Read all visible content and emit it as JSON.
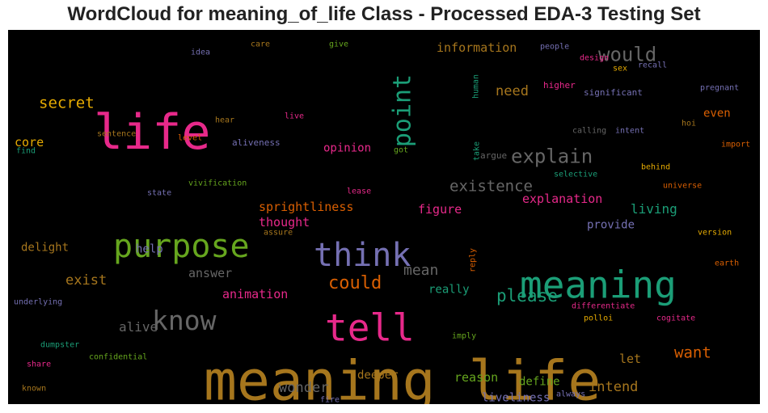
{
  "title": "WordCloud for meaning_of_life Class - Processed EDA-3 Testing Set",
  "chart_data": {
    "type": "wordcloud",
    "title": "WordCloud for meaning_of_life Class - Processed EDA-3 Testing Set",
    "background": "#000000",
    "palette": [
      "#e7298a",
      "#1b9e77",
      "#a6761d",
      "#7570b3",
      "#66a61e",
      "#d95f02",
      "#666666",
      "#e6ab02"
    ],
    "words": [
      {
        "text": "meaning life",
        "weight": 68,
        "color": "#a6761d"
      },
      {
        "text": "life",
        "weight": 60,
        "color": "#e7298a"
      },
      {
        "text": "purpose",
        "weight": 40,
        "color": "#66a61e"
      },
      {
        "text": "think",
        "weight": 40,
        "color": "#7570b3"
      },
      {
        "text": "tell",
        "weight": 46,
        "color": "#e7298a"
      },
      {
        "text": "meaning",
        "weight": 46,
        "color": "#1b9e77"
      },
      {
        "text": "know",
        "weight": 33,
        "color": "#666666"
      },
      {
        "text": "point",
        "weight": 30,
        "color": "#1b9e77"
      },
      {
        "text": "would",
        "weight": 24,
        "color": "#666666"
      },
      {
        "text": "explain",
        "weight": 24,
        "color": "#666666"
      },
      {
        "text": "could",
        "weight": 22,
        "color": "#d95f02"
      },
      {
        "text": "please",
        "weight": 21,
        "color": "#1b9e77"
      },
      {
        "text": "want",
        "weight": 19,
        "color": "#d95f02"
      },
      {
        "text": "secret",
        "weight": 19,
        "color": "#e6ab02"
      },
      {
        "text": "existence",
        "weight": 19,
        "color": "#666666"
      },
      {
        "text": "mean",
        "weight": 18,
        "color": "#666666"
      },
      {
        "text": "need",
        "weight": 17,
        "color": "#a6761d"
      },
      {
        "text": "exist",
        "weight": 17,
        "color": "#a6761d"
      },
      {
        "text": "wonder",
        "weight": 17,
        "color": "#666666"
      },
      {
        "text": "intend",
        "weight": 17,
        "color": "#a6761d"
      },
      {
        "text": "information",
        "weight": 15,
        "color": "#a6761d"
      },
      {
        "text": "explanation",
        "weight": 15,
        "color": "#e7298a"
      },
      {
        "text": "living",
        "weight": 16,
        "color": "#1b9e77"
      },
      {
        "text": "alive",
        "weight": 16,
        "color": "#666666"
      },
      {
        "text": "answer",
        "weight": 15,
        "color": "#666666"
      },
      {
        "text": "figure",
        "weight": 15,
        "color": "#e7298a"
      },
      {
        "text": "let",
        "weight": 15,
        "color": "#a6761d"
      },
      {
        "text": "core",
        "weight": 15,
        "color": "#e6ab02"
      },
      {
        "text": "delight",
        "weight": 14,
        "color": "#a6761d"
      },
      {
        "text": "sprightliness",
        "weight": 15,
        "color": "#d95f02"
      },
      {
        "text": "thought",
        "weight": 15,
        "color": "#e7298a"
      },
      {
        "text": "animation",
        "weight": 15,
        "color": "#e7298a"
      },
      {
        "text": "reason",
        "weight": 15,
        "color": "#66a61e"
      },
      {
        "text": "define",
        "weight": 14,
        "color": "#66a61e"
      },
      {
        "text": "deeper",
        "weight": 14,
        "color": "#a6761d"
      },
      {
        "text": "liveliness",
        "weight": 14,
        "color": "#7570b3"
      },
      {
        "text": "even",
        "weight": 14,
        "color": "#d95f02"
      },
      {
        "text": "opinion",
        "weight": 14,
        "color": "#e7298a"
      },
      {
        "text": "provide",
        "weight": 14,
        "color": "#7570b3"
      },
      {
        "text": "help",
        "weight": 14,
        "color": "#7570b3"
      },
      {
        "text": "really",
        "weight": 14,
        "color": "#1b9e77"
      },
      {
        "text": "idea",
        "weight": 10,
        "color": "#7570b3"
      },
      {
        "text": "care",
        "weight": 10,
        "color": "#a6761d"
      },
      {
        "text": "give",
        "weight": 10,
        "color": "#66a61e"
      },
      {
        "text": "people",
        "weight": 10,
        "color": "#7570b3"
      },
      {
        "text": "design",
        "weight": 10,
        "color": "#e7298a"
      },
      {
        "text": "sex",
        "weight": 10,
        "color": "#e6ab02"
      },
      {
        "text": "recall",
        "weight": 10,
        "color": "#7570b3"
      },
      {
        "text": "human",
        "weight": 10,
        "color": "#1b9e77"
      },
      {
        "text": "higher",
        "weight": 11,
        "color": "#e7298a"
      },
      {
        "text": "significant",
        "weight": 11,
        "color": "#7570b3"
      },
      {
        "text": "pregnant",
        "weight": 10,
        "color": "#7570b3"
      },
      {
        "text": "hear",
        "weight": 10,
        "color": "#a6761d"
      },
      {
        "text": "live",
        "weight": 10,
        "color": "#e7298a"
      },
      {
        "text": "sentence",
        "weight": 10,
        "color": "#a6761d"
      },
      {
        "text": "level",
        "weight": 10,
        "color": "#d95f02"
      },
      {
        "text": "calling",
        "weight": 10,
        "color": "#666666"
      },
      {
        "text": "intent",
        "weight": 10,
        "color": "#7570b3"
      },
      {
        "text": "hoi",
        "weight": 10,
        "color": "#a6761d"
      },
      {
        "text": "find",
        "weight": 10,
        "color": "#1b9e77"
      },
      {
        "text": "aliveness",
        "weight": 11,
        "color": "#7570b3"
      },
      {
        "text": "got",
        "weight": 10,
        "color": "#66a61e"
      },
      {
        "text": "take",
        "weight": 10,
        "color": "#1b9e77"
      },
      {
        "text": "argue",
        "weight": 11,
        "color": "#666666"
      },
      {
        "text": "import",
        "weight": 10,
        "color": "#d95f02"
      },
      {
        "text": "vivification",
        "weight": 10,
        "color": "#66a61e"
      },
      {
        "text": "selective",
        "weight": 10,
        "color": "#1b9e77"
      },
      {
        "text": "behind",
        "weight": 10,
        "color": "#e6ab02"
      },
      {
        "text": "state",
        "weight": 10,
        "color": "#7570b3"
      },
      {
        "text": "lease",
        "weight": 10,
        "color": "#e7298a"
      },
      {
        "text": "universe",
        "weight": 10,
        "color": "#d95f02"
      },
      {
        "text": "assure",
        "weight": 10,
        "color": "#a6761d"
      },
      {
        "text": "version",
        "weight": 10,
        "color": "#e6ab02"
      },
      {
        "text": "reply",
        "weight": 10,
        "color": "#d95f02"
      },
      {
        "text": "earth",
        "weight": 10,
        "color": "#d95f02"
      },
      {
        "text": "underlying",
        "weight": 10,
        "color": "#7570b3"
      },
      {
        "text": "differentiate",
        "weight": 10,
        "color": "#e7298a"
      },
      {
        "text": "polloi",
        "weight": 10,
        "color": "#e6ab02"
      },
      {
        "text": "cogitate",
        "weight": 10,
        "color": "#e7298a"
      },
      {
        "text": "dumpster",
        "weight": 10,
        "color": "#1b9e77"
      },
      {
        "text": "imply",
        "weight": 10,
        "color": "#66a61e"
      },
      {
        "text": "share",
        "weight": 10,
        "color": "#e7298a"
      },
      {
        "text": "confidential",
        "weight": 10,
        "color": "#66a61e"
      },
      {
        "text": "known",
        "weight": 10,
        "color": "#a6761d"
      },
      {
        "text": "fire",
        "weight": 10,
        "color": "#7570b3"
      },
      {
        "text": "always",
        "weight": 10,
        "color": "#7570b3"
      }
    ]
  }
}
